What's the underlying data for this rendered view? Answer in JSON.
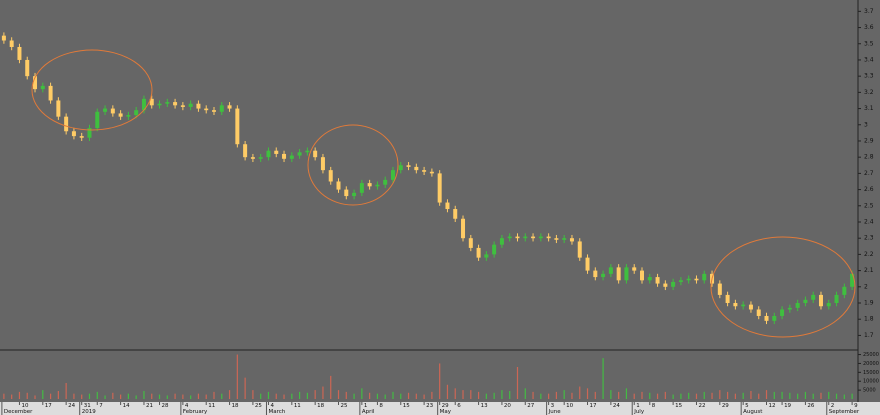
{
  "chart_data": {
    "type": "candlestick",
    "up_color": "#3fbf3f",
    "down_color": "#ffcc66",
    "vol_up_color": "#44bb44",
    "vol_down_color": "#cc6655",
    "ylim": [
      1.61,
      3.77
    ],
    "yticks": [
      1.7,
      1.8,
      1.9,
      2.0,
      2.1,
      2.2,
      2.3,
      2.4,
      2.5,
      2.6,
      2.7,
      2.8,
      2.9,
      3.0,
      3.1,
      3.2,
      3.3,
      3.4,
      3.5,
      3.6,
      3.7
    ],
    "vol_ylim": [
      0,
      27000
    ],
    "vol_yticks": [
      5000,
      10000,
      15000,
      20000,
      25000
    ],
    "categories": [
      null,
      null,
      "10",
      null,
      null,
      "17",
      null,
      null,
      "24",
      null,
      "31",
      null,
      "7",
      null,
      null,
      "14",
      null,
      null,
      "21",
      null,
      "28",
      null,
      null,
      "4",
      null,
      null,
      "11",
      null,
      null,
      "18",
      null,
      null,
      "25",
      null,
      "4",
      null,
      null,
      "11",
      null,
      null,
      "18",
      null,
      null,
      "25",
      null,
      null,
      "1",
      null,
      "8",
      null,
      null,
      "15",
      null,
      null,
      "23",
      null,
      "29",
      null,
      "6",
      null,
      null,
      "13",
      null,
      null,
      "20",
      null,
      null,
      "27",
      null,
      null,
      "3",
      null,
      "10",
      null,
      null,
      "17",
      null,
      null,
      "24",
      null,
      null,
      "1",
      null,
      "8",
      null,
      null,
      "15",
      null,
      null,
      "22",
      null,
      null,
      "29",
      null,
      null,
      "5",
      null,
      null,
      "12",
      null,
      "19",
      null,
      null,
      "26",
      null,
      null,
      "2",
      null,
      null,
      "9"
    ],
    "months": [
      "December",
      null,
      null,
      null,
      null,
      null,
      null,
      null,
      null,
      null,
      "2019",
      null,
      null,
      null,
      null,
      null,
      null,
      null,
      null,
      null,
      null,
      null,
      null,
      "February",
      null,
      null,
      null,
      null,
      null,
      null,
      null,
      null,
      null,
      null,
      "March",
      null,
      null,
      null,
      null,
      null,
      null,
      null,
      null,
      null,
      null,
      null,
      "April",
      null,
      null,
      null,
      null,
      null,
      null,
      null,
      null,
      null,
      "May",
      null,
      null,
      null,
      null,
      null,
      null,
      null,
      null,
      null,
      null,
      null,
      null,
      null,
      "June",
      null,
      null,
      null,
      null,
      null,
      null,
      null,
      null,
      null,
      null,
      "July",
      null,
      null,
      null,
      null,
      null,
      null,
      null,
      null,
      null,
      null,
      null,
      null,
      null,
      "August",
      null,
      null,
      null,
      null,
      null,
      null,
      null,
      null,
      null,
      null,
      "September",
      null,
      null,
      null
    ],
    "ohlc": [
      [
        3.55,
        3.57,
        3.5,
        3.52
      ],
      [
        3.52,
        3.54,
        3.46,
        3.48
      ],
      [
        3.48,
        3.5,
        3.38,
        3.4
      ],
      [
        3.4,
        3.42,
        3.28,
        3.3
      ],
      [
        3.3,
        3.32,
        3.2,
        3.22
      ],
      [
        3.22,
        3.26,
        3.2,
        3.24
      ],
      [
        3.24,
        3.26,
        3.13,
        3.15
      ],
      [
        3.15,
        3.17,
        3.03,
        3.05
      ],
      [
        3.05,
        3.07,
        2.94,
        2.96
      ],
      [
        2.96,
        2.98,
        2.91,
        2.93
      ],
      [
        2.93,
        2.95,
        2.9,
        2.92
      ],
      [
        2.92,
        3.0,
        2.9,
        2.98
      ],
      [
        2.98,
        3.1,
        2.96,
        3.08
      ],
      [
        3.08,
        3.12,
        3.06,
        3.1
      ],
      [
        3.1,
        3.12,
        3.05,
        3.07
      ],
      [
        3.07,
        3.09,
        3.03,
        3.05
      ],
      [
        3.05,
        3.08,
        3.03,
        3.06
      ],
      [
        3.06,
        3.11,
        3.04,
        3.09
      ],
      [
        3.09,
        3.18,
        3.07,
        3.16
      ],
      [
        3.16,
        3.18,
        3.1,
        3.12
      ],
      [
        3.12,
        3.15,
        3.1,
        3.13
      ],
      [
        3.13,
        3.16,
        3.11,
        3.14
      ],
      [
        3.14,
        3.16,
        3.1,
        3.12
      ],
      [
        3.12,
        3.14,
        3.09,
        3.11
      ],
      [
        3.11,
        3.15,
        3.09,
        3.13
      ],
      [
        3.13,
        3.15,
        3.08,
        3.1
      ],
      [
        3.1,
        3.12,
        3.07,
        3.09
      ],
      [
        3.09,
        3.11,
        3.06,
        3.08
      ],
      [
        3.08,
        3.14,
        3.06,
        3.12
      ],
      [
        3.12,
        3.14,
        3.08,
        3.1
      ],
      [
        3.1,
        3.12,
        2.86,
        2.88
      ],
      [
        2.88,
        2.9,
        2.78,
        2.8
      ],
      [
        2.8,
        2.82,
        2.77,
        2.79
      ],
      [
        2.79,
        2.82,
        2.77,
        2.8
      ],
      [
        2.8,
        2.86,
        2.78,
        2.84
      ],
      [
        2.84,
        2.86,
        2.8,
        2.82
      ],
      [
        2.82,
        2.84,
        2.77,
        2.79
      ],
      [
        2.79,
        2.83,
        2.77,
        2.81
      ],
      [
        2.81,
        2.85,
        2.79,
        2.83
      ],
      [
        2.83,
        2.86,
        2.81,
        2.84
      ],
      [
        2.84,
        2.86,
        2.78,
        2.8
      ],
      [
        2.8,
        2.82,
        2.7,
        2.72
      ],
      [
        2.72,
        2.74,
        2.63,
        2.65
      ],
      [
        2.65,
        2.67,
        2.58,
        2.6
      ],
      [
        2.6,
        2.62,
        2.54,
        2.56
      ],
      [
        2.56,
        2.6,
        2.54,
        2.58
      ],
      [
        2.58,
        2.66,
        2.56,
        2.64
      ],
      [
        2.64,
        2.66,
        2.6,
        2.62
      ],
      [
        2.62,
        2.65,
        2.6,
        2.63
      ],
      [
        2.63,
        2.68,
        2.61,
        2.66
      ],
      [
        2.66,
        2.74,
        2.64,
        2.72
      ],
      [
        2.72,
        2.77,
        2.7,
        2.75
      ],
      [
        2.75,
        2.77,
        2.72,
        2.74
      ],
      [
        2.74,
        2.76,
        2.7,
        2.72
      ],
      [
        2.72,
        2.74,
        2.69,
        2.71
      ],
      [
        2.71,
        2.73,
        2.68,
        2.7
      ],
      [
        2.7,
        2.72,
        2.5,
        2.52
      ],
      [
        2.52,
        2.54,
        2.46,
        2.48
      ],
      [
        2.48,
        2.5,
        2.4,
        2.42
      ],
      [
        2.42,
        2.44,
        2.28,
        2.3
      ],
      [
        2.3,
        2.32,
        2.22,
        2.24
      ],
      [
        2.24,
        2.26,
        2.16,
        2.18
      ],
      [
        2.18,
        2.22,
        2.16,
        2.2
      ],
      [
        2.2,
        2.28,
        2.18,
        2.26
      ],
      [
        2.26,
        2.32,
        2.24,
        2.3
      ],
      [
        2.3,
        2.33,
        2.28,
        2.31
      ],
      [
        2.31,
        2.33,
        2.28,
        2.3
      ],
      [
        2.3,
        2.33,
        2.28,
        2.31
      ],
      [
        2.31,
        2.33,
        2.28,
        2.3
      ],
      [
        2.3,
        2.33,
        2.28,
        2.31
      ],
      [
        2.31,
        2.33,
        2.28,
        2.3
      ],
      [
        2.3,
        2.32,
        2.27,
        2.29
      ],
      [
        2.29,
        2.32,
        2.27,
        2.3
      ],
      [
        2.3,
        2.32,
        2.26,
        2.28
      ],
      [
        2.28,
        2.3,
        2.16,
        2.18
      ],
      [
        2.18,
        2.2,
        2.08,
        2.1
      ],
      [
        2.1,
        2.12,
        2.04,
        2.06
      ],
      [
        2.06,
        2.1,
        2.04,
        2.08
      ],
      [
        2.08,
        2.14,
        2.06,
        2.12
      ],
      [
        2.12,
        2.14,
        2.02,
        2.04
      ],
      [
        2.04,
        2.14,
        2.02,
        2.12
      ],
      [
        2.12,
        2.14,
        2.08,
        2.1
      ],
      [
        2.1,
        2.12,
        2.02,
        2.04
      ],
      [
        2.04,
        2.08,
        2.02,
        2.06
      ],
      [
        2.06,
        2.08,
        2.0,
        2.02
      ],
      [
        2.02,
        2.04,
        1.98,
        2.0
      ],
      [
        2.0,
        2.05,
        1.98,
        2.03
      ],
      [
        2.03,
        2.06,
        2.01,
        2.04
      ],
      [
        2.04,
        2.07,
        2.02,
        2.05
      ],
      [
        2.05,
        2.07,
        2.02,
        2.04
      ],
      [
        2.04,
        2.1,
        2.02,
        2.08
      ],
      [
        2.08,
        2.1,
        2.0,
        2.02
      ],
      [
        2.02,
        2.04,
        1.93,
        1.95
      ],
      [
        1.95,
        1.97,
        1.88,
        1.9
      ],
      [
        1.9,
        1.92,
        1.86,
        1.88
      ],
      [
        1.88,
        1.91,
        1.86,
        1.89
      ],
      [
        1.89,
        1.91,
        1.84,
        1.86
      ],
      [
        1.86,
        1.88,
        1.8,
        1.82
      ],
      [
        1.82,
        1.84,
        1.77,
        1.79
      ],
      [
        1.79,
        1.84,
        1.77,
        1.82
      ],
      [
        1.82,
        1.88,
        1.8,
        1.86
      ],
      [
        1.86,
        1.89,
        1.84,
        1.87
      ],
      [
        1.87,
        1.92,
        1.85,
        1.9
      ],
      [
        1.9,
        1.94,
        1.88,
        1.92
      ],
      [
        1.92,
        1.97,
        1.9,
        1.95
      ],
      [
        1.95,
        1.97,
        1.86,
        1.88
      ],
      [
        1.88,
        1.92,
        1.86,
        1.9
      ],
      [
        1.9,
        1.97,
        1.88,
        1.95
      ],
      [
        1.95,
        2.02,
        1.93,
        2.0
      ],
      [
        2.0,
        2.1,
        1.98,
        2.08
      ]
    ],
    "volume": [
      3000,
      2500,
      4000,
      3500,
      2000,
      5000,
      3000,
      4500,
      9000,
      3000,
      2500,
      3000,
      4000,
      2000,
      3500,
      2500,
      3000,
      2000,
      4500,
      3000,
      2500,
      2000,
      3000,
      2500,
      2000,
      3000,
      2500,
      4000,
      3000,
      5000,
      25000,
      12000,
      5000,
      3000,
      4000,
      3000,
      2500,
      3000,
      4000,
      3500,
      5000,
      7000,
      13000,
      5000,
      4000,
      3000,
      6000,
      3500,
      3000,
      2500,
      4000,
      3000,
      3500,
      3000,
      2500,
      4000,
      20000,
      8000,
      6000,
      5000,
      5000,
      4000,
      3000,
      3500,
      5000,
      4500,
      18000,
      6000,
      4000,
      3000,
      3000,
      4000,
      5000,
      3500,
      7000,
      6000,
      4000,
      23000,
      5000,
      4000,
      6000,
      3000,
      4000,
      3500,
      3000,
      4000,
      2500,
      3000,
      3500,
      3000,
      4000,
      3500,
      5000,
      4000,
      3000,
      3500,
      4500,
      3000,
      5000,
      4000,
      4000,
      3500,
      3000,
      4000,
      3000,
      3500,
      4000,
      3000,
      2500,
      3000
    ]
  }
}
